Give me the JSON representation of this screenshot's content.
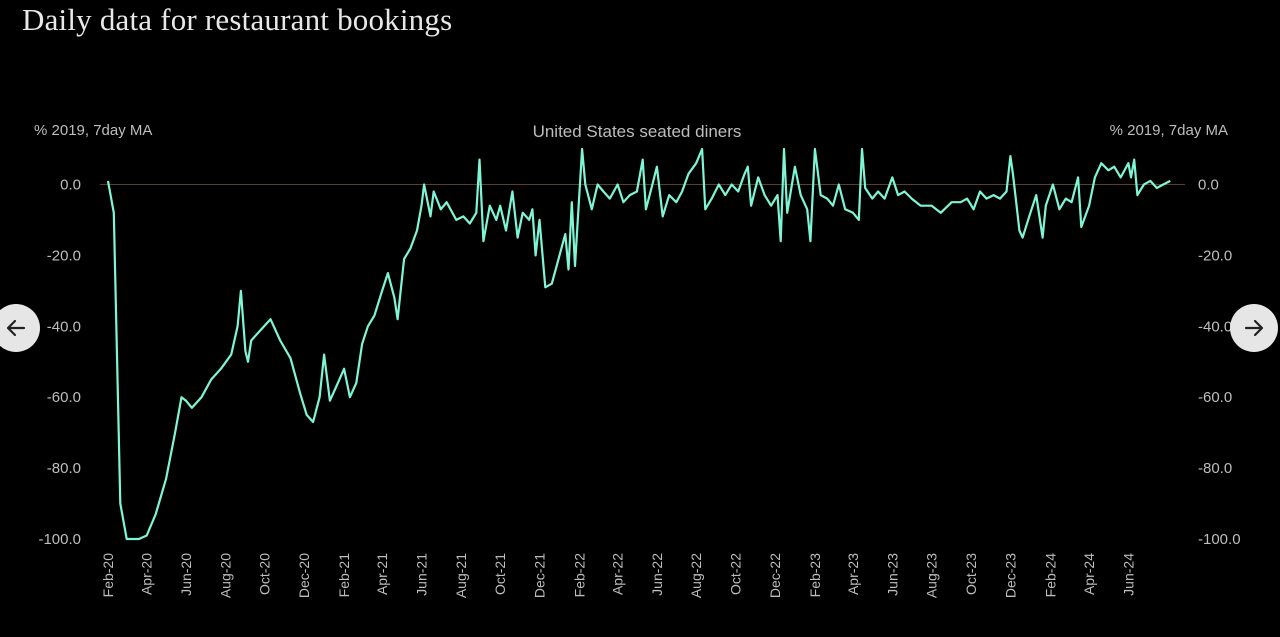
{
  "page": {
    "title": "Daily data for restaurant bookings"
  },
  "nav": {
    "prev_icon": "arrow-left-icon",
    "next_icon": "arrow-right-icon"
  },
  "colors": {
    "background": "#000000",
    "line": "#7ff5d6",
    "text": "#bdbdbd",
    "baseline": "#5a3f2a"
  },
  "chart_data": {
    "type": "line",
    "title": "United States seated diners",
    "ylabel_left": "% 2019, 7day MA",
    "ylabel_right": "% 2019, 7day MA",
    "ylim": [
      -100,
      10
    ],
    "yticks": [
      0,
      -20,
      -40,
      -60,
      -80,
      -100
    ],
    "ytick_labels": [
      "0.0",
      "-20.0",
      "-40.0",
      "-60.0",
      "-80.0",
      "-100.0"
    ],
    "xlim": [
      "2020-02-01",
      "2024-08-20"
    ],
    "xtick_labels": [
      "Feb-20",
      "Apr-20",
      "Jun-20",
      "Aug-20",
      "Oct-20",
      "Dec-20",
      "Feb-21",
      "Apr-21",
      "Jun-21",
      "Aug-21",
      "Oct-21",
      "Dec-21",
      "Feb-22",
      "Apr-22",
      "Jun-22",
      "Aug-22",
      "Oct-22",
      "Dec-22",
      "Feb-23",
      "Apr-23",
      "Jun-23",
      "Aug-23",
      "Oct-23",
      "Dec-23",
      "Feb-24",
      "Apr-24",
      "Jun-24"
    ],
    "grid": false,
    "legend": "none",
    "series": [
      {
        "values": [
          [
            "2020-02-01",
            1
          ],
          [
            "2020-02-10",
            -8
          ],
          [
            "2020-02-20",
            -90
          ],
          [
            "2020-03-01",
            -100
          ],
          [
            "2020-03-20",
            -100
          ],
          [
            "2020-04-01",
            -99
          ],
          [
            "2020-04-15",
            -93
          ],
          [
            "2020-05-01",
            -83
          ],
          [
            "2020-05-15",
            -70
          ],
          [
            "2020-05-25",
            -60
          ],
          [
            "2020-06-01",
            -61
          ],
          [
            "2020-06-10",
            -63
          ],
          [
            "2020-06-25",
            -60
          ],
          [
            "2020-07-10",
            -55
          ],
          [
            "2020-07-25",
            -52
          ],
          [
            "2020-08-10",
            -48
          ],
          [
            "2020-08-20",
            -40
          ],
          [
            "2020-08-25",
            -30
          ],
          [
            "2020-09-01",
            -47
          ],
          [
            "2020-09-05",
            -50
          ],
          [
            "2020-09-10",
            -44
          ],
          [
            "2020-09-25",
            -41
          ],
          [
            "2020-10-10",
            -38
          ],
          [
            "2020-10-25",
            -44
          ],
          [
            "2020-11-10",
            -49
          ],
          [
            "2020-11-25",
            -59
          ],
          [
            "2020-12-05",
            -65
          ],
          [
            "2020-12-15",
            -67
          ],
          [
            "2020-12-25",
            -60
          ],
          [
            "2021-01-01",
            -48
          ],
          [
            "2021-01-10",
            -61
          ],
          [
            "2021-01-20",
            -57
          ],
          [
            "2021-02-01",
            -52
          ],
          [
            "2021-02-10",
            -60
          ],
          [
            "2021-02-20",
            -56
          ],
          [
            "2021-03-01",
            -45
          ],
          [
            "2021-03-10",
            -40
          ],
          [
            "2021-03-20",
            -37
          ],
          [
            "2021-04-01",
            -30
          ],
          [
            "2021-04-10",
            -25
          ],
          [
            "2021-04-20",
            -32
          ],
          [
            "2021-04-25",
            -38
          ],
          [
            "2021-05-05",
            -21
          ],
          [
            "2021-05-15",
            -18
          ],
          [
            "2021-05-25",
            -13
          ],
          [
            "2021-06-01",
            -6
          ],
          [
            "2021-06-05",
            0
          ],
          [
            "2021-06-15",
            -9
          ],
          [
            "2021-06-20",
            -2
          ],
          [
            "2021-07-01",
            -7
          ],
          [
            "2021-07-10",
            -5
          ],
          [
            "2021-07-25",
            -10
          ],
          [
            "2021-08-05",
            -9
          ],
          [
            "2021-08-15",
            -11
          ],
          [
            "2021-08-25",
            -8
          ],
          [
            "2021-08-30",
            7
          ],
          [
            "2021-09-05",
            -16
          ],
          [
            "2021-09-15",
            -6
          ],
          [
            "2021-09-25",
            -10
          ],
          [
            "2021-10-01",
            -6
          ],
          [
            "2021-10-10",
            -13
          ],
          [
            "2021-10-20",
            -2
          ],
          [
            "2021-10-28",
            -15
          ],
          [
            "2021-11-05",
            -8
          ],
          [
            "2021-11-15",
            -10
          ],
          [
            "2021-11-20",
            -7
          ],
          [
            "2021-11-25",
            -20
          ],
          [
            "2021-12-01",
            -10
          ],
          [
            "2021-12-10",
            -29
          ],
          [
            "2021-12-20",
            -28
          ],
          [
            "2022-01-01",
            -20
          ],
          [
            "2022-01-10",
            -14
          ],
          [
            "2022-01-15",
            -24
          ],
          [
            "2022-01-20",
            -5
          ],
          [
            "2022-01-25",
            -23
          ],
          [
            "2022-02-01",
            -2
          ],
          [
            "2022-02-05",
            10
          ],
          [
            "2022-02-10",
            0
          ],
          [
            "2022-02-20",
            -7
          ],
          [
            "2022-03-01",
            0
          ],
          [
            "2022-03-10",
            -2
          ],
          [
            "2022-03-20",
            -4
          ],
          [
            "2022-04-01",
            0
          ],
          [
            "2022-04-10",
            -5
          ],
          [
            "2022-04-20",
            -3
          ],
          [
            "2022-05-01",
            -2
          ],
          [
            "2022-05-10",
            7
          ],
          [
            "2022-05-15",
            -7
          ],
          [
            "2022-05-25",
            0
          ],
          [
            "2022-06-01",
            5
          ],
          [
            "2022-06-10",
            -9
          ],
          [
            "2022-06-20",
            -3
          ],
          [
            "2022-07-01",
            -5
          ],
          [
            "2022-07-10",
            -2
          ],
          [
            "2022-07-20",
            3
          ],
          [
            "2022-08-01",
            6
          ],
          [
            "2022-08-10",
            10
          ],
          [
            "2022-08-15",
            -7
          ],
          [
            "2022-08-25",
            -4
          ],
          [
            "2022-09-05",
            0
          ],
          [
            "2022-09-15",
            -3
          ],
          [
            "2022-09-25",
            0
          ],
          [
            "2022-10-05",
            -2
          ],
          [
            "2022-10-15",
            3
          ],
          [
            "2022-10-20",
            5
          ],
          [
            "2022-10-25",
            -6
          ],
          [
            "2022-11-05",
            2
          ],
          [
            "2022-11-15",
            -3
          ],
          [
            "2022-11-25",
            -6
          ],
          [
            "2022-12-05",
            -3
          ],
          [
            "2022-12-10",
            -16
          ],
          [
            "2022-12-15",
            10
          ],
          [
            "2022-12-20",
            -8
          ],
          [
            "2023-01-01",
            5
          ],
          [
            "2023-01-10",
            -3
          ],
          [
            "2023-01-20",
            -7
          ],
          [
            "2023-01-25",
            -16
          ],
          [
            "2023-02-01",
            10
          ],
          [
            "2023-02-10",
            -3
          ],
          [
            "2023-02-20",
            -4
          ],
          [
            "2023-03-01",
            -6
          ],
          [
            "2023-03-10",
            0
          ],
          [
            "2023-03-20",
            -7
          ],
          [
            "2023-04-01",
            -8
          ],
          [
            "2023-04-10",
            -10
          ],
          [
            "2023-04-15",
            10
          ],
          [
            "2023-04-20",
            -1
          ],
          [
            "2023-05-01",
            -4
          ],
          [
            "2023-05-10",
            -2
          ],
          [
            "2023-05-20",
            -4
          ],
          [
            "2023-06-01",
            2
          ],
          [
            "2023-06-10",
            -3
          ],
          [
            "2023-06-20",
            -2
          ],
          [
            "2023-07-01",
            -4
          ],
          [
            "2023-07-15",
            -6
          ],
          [
            "2023-08-01",
            -6
          ],
          [
            "2023-08-15",
            -8
          ],
          [
            "2023-09-01",
            -5
          ],
          [
            "2023-09-15",
            -5
          ],
          [
            "2023-09-25",
            -4
          ],
          [
            "2023-10-05",
            -7
          ],
          [
            "2023-10-15",
            -2
          ],
          [
            "2023-10-25",
            -4
          ],
          [
            "2023-11-05",
            -3
          ],
          [
            "2023-11-15",
            -4
          ],
          [
            "2023-11-25",
            -2
          ],
          [
            "2023-12-01",
            8
          ],
          [
            "2023-12-05",
            3
          ],
          [
            "2023-12-10",
            -5
          ],
          [
            "2023-12-15",
            -13
          ],
          [
            "2023-12-20",
            -15
          ],
          [
            "2024-01-01",
            -8
          ],
          [
            "2024-01-10",
            -3
          ],
          [
            "2024-01-20",
            -15
          ],
          [
            "2024-01-25",
            -6
          ],
          [
            "2024-02-05",
            0
          ],
          [
            "2024-02-15",
            -7
          ],
          [
            "2024-02-25",
            -4
          ],
          [
            "2024-03-05",
            -5
          ],
          [
            "2024-03-15",
            2
          ],
          [
            "2024-03-20",
            -12
          ],
          [
            "2024-04-01",
            -6
          ],
          [
            "2024-04-10",
            2
          ],
          [
            "2024-04-20",
            6
          ],
          [
            "2024-05-01",
            4
          ],
          [
            "2024-05-10",
            5
          ],
          [
            "2024-05-20",
            2
          ],
          [
            "2024-06-01",
            6
          ],
          [
            "2024-06-05",
            2
          ],
          [
            "2024-06-10",
            7
          ],
          [
            "2024-06-15",
            -3
          ],
          [
            "2024-06-25",
            0
          ],
          [
            "2024-07-05",
            1
          ],
          [
            "2024-07-15",
            -1
          ],
          [
            "2024-07-25",
            0
          ],
          [
            "2024-08-05",
            1
          ]
        ]
      }
    ]
  }
}
